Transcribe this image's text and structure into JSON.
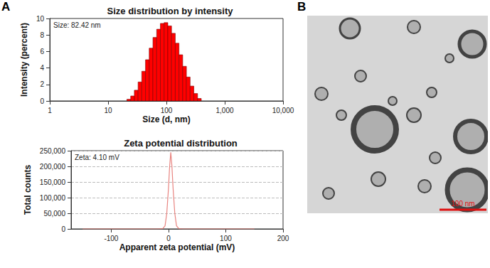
{
  "chart_data": [
    {
      "type": "histogram",
      "title": "Size distribution by intensity",
      "annotation": "Size: 82.42 nm",
      "xlabel": "Size (d, nm)",
      "ylabel": "Intensity (percent)",
      "bins": [
        21.0,
        24.4,
        28.2,
        32.7,
        37.8,
        43.8,
        50.7,
        58.8,
        68.1,
        78.8,
        91.3,
        105.7,
        122.4,
        141.8,
        164.2,
        190.1,
        220.2,
        255.0,
        295.3,
        342.0,
        396.1
      ],
      "counts": [
        0.2,
        0.6,
        1.3,
        2.3,
        3.6,
        5.0,
        6.4,
        7.7,
        8.7,
        9.4,
        9.5,
        9.1,
        8.2,
        7.0,
        5.6,
        4.2,
        2.9,
        1.8,
        0.9,
        0.3
      ],
      "color": "#ff0000",
      "log": "x",
      "xlim": [
        1,
        10000
      ],
      "xticks": [
        1,
        10,
        100,
        {
          "value": 1000,
          "label": "1,000"
        },
        {
          "value": 10000,
          "label": "10,000"
        }
      ],
      "ylim": [
        0,
        10
      ],
      "yticks": [
        0,
        2,
        4,
        6,
        8,
        10
      ],
      "grid": false
    },
    {
      "type": "line",
      "title": "Zeta potential distribution",
      "annotation": "Zeta: 4.10 mV",
      "xlabel": "Apparent zeta potential (mV)",
      "ylabel": "Total counts",
      "x": [
        -150,
        -20,
        -10,
        -6,
        -3,
        0,
        2,
        4,
        6,
        8,
        11,
        14,
        18,
        25,
        150
      ],
      "values": [
        0,
        0,
        1000,
        10000,
        50000,
        130000,
        200000,
        245000,
        200000,
        130000,
        50000,
        10000,
        1000,
        0,
        0
      ],
      "color": "#e8837f",
      "xlim": [
        -170,
        200
      ],
      "xticks": [
        -100,
        0,
        100,
        200
      ],
      "ylim": [
        0,
        250000
      ],
      "yticks": [
        0,
        {
          "value": 50000,
          "label": "50,000"
        },
        {
          "value": 100000,
          "label": "100,000"
        },
        {
          "value": 150000,
          "label": "150,000"
        },
        {
          "value": 200000,
          "label": "200,000"
        },
        {
          "value": 250000,
          "label": "250,000"
        }
      ],
      "grid": true
    }
  ],
  "panel_labels": [
    "A",
    "B"
  ],
  "micrograph": {
    "scale_bar_label": "100 nm"
  }
}
